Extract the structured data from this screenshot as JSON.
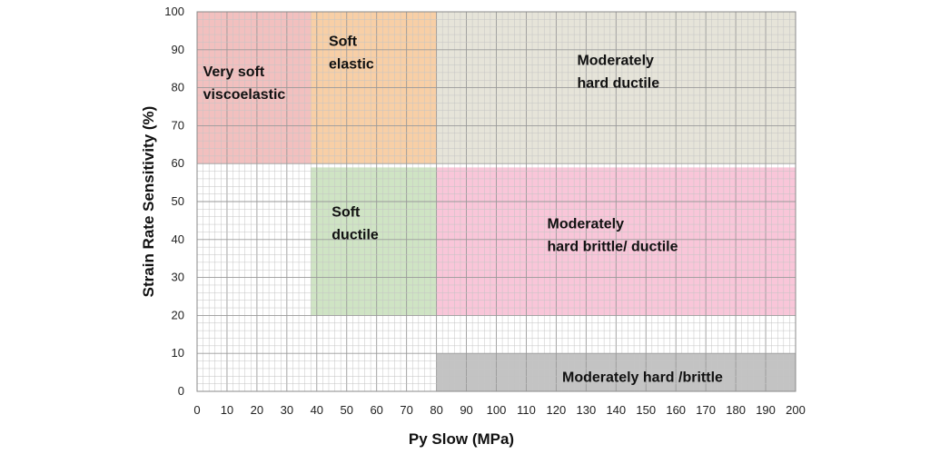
{
  "chart_data": {
    "type": "area",
    "xlabel": "Py Slow (MPa)",
    "ylabel": "Strain Rate Sensitivity (%)",
    "xlim": [
      0,
      200
    ],
    "ylim": [
      0,
      100
    ],
    "x_major_ticks": [
      0,
      10,
      20,
      30,
      40,
      50,
      60,
      70,
      80,
      90,
      100,
      110,
      120,
      130,
      140,
      150,
      160,
      170,
      180,
      190,
      200
    ],
    "y_major_ticks": [
      0,
      10,
      20,
      30,
      40,
      50,
      60,
      70,
      80,
      90,
      100
    ],
    "x_minor_step": 2,
    "y_minor_step": 2,
    "grid": true,
    "regions": [
      {
        "name": "Very soft viscoelastic",
        "lines": [
          "Very soft",
          "viscoelastic"
        ],
        "x": [
          0,
          38
        ],
        "y": [
          60,
          100
        ],
        "color": "#f2c0bf",
        "label_at": [
          2,
          83
        ]
      },
      {
        "name": "Soft elastic",
        "lines": [
          "Soft",
          "elastic"
        ],
        "x": [
          38,
          80
        ],
        "y": [
          60,
          100
        ],
        "color": "#f8cfa6",
        "label_at": [
          44,
          91
        ]
      },
      {
        "name": "Moderately hard ductile",
        "lines": [
          "Moderately",
          "hard ductile"
        ],
        "x": [
          80,
          200
        ],
        "y": [
          60,
          100
        ],
        "color": "#e6e4d9",
        "label_at": [
          127,
          86
        ]
      },
      {
        "name": "Soft ductile",
        "lines": [
          "Soft",
          "ductile"
        ],
        "x": [
          38,
          80
        ],
        "y": [
          20,
          59
        ],
        "color": "#cfe4c4",
        "label_at": [
          45,
          46
        ]
      },
      {
        "name": "Moderately hard brittle/ ductile",
        "lines": [
          "Moderately",
          "hard brittle/ ductile"
        ],
        "x": [
          80,
          200
        ],
        "y": [
          20,
          59
        ],
        "color": "#f9c6d9",
        "label_at": [
          117,
          43
        ]
      },
      {
        "name": "Moderately hard /brittle",
        "lines": [
          "Moderately hard /brittle"
        ],
        "x": [
          80,
          200
        ],
        "y": [
          0,
          10
        ],
        "color": "#c3c3c3",
        "label_at": [
          122,
          2.5
        ]
      }
    ]
  }
}
